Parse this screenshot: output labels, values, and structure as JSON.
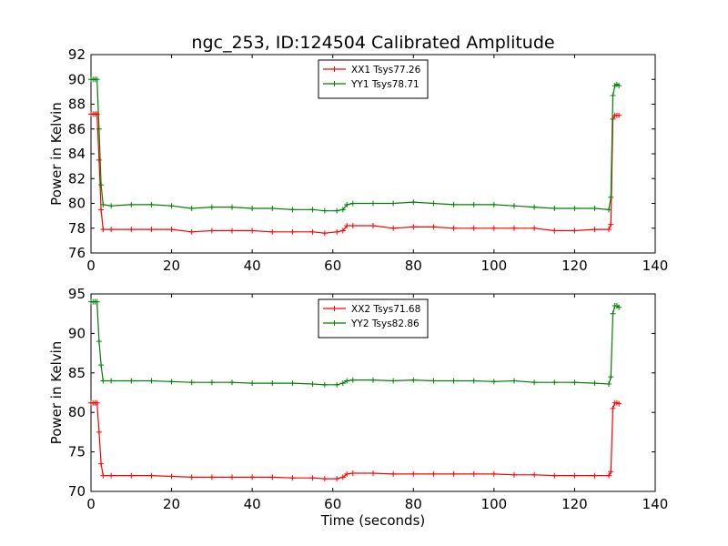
{
  "figure": {
    "title": "ngc_253, ID:124504 Calibrated Amplitude"
  },
  "chart_data": [
    {
      "type": "line",
      "title": "ngc_253, ID:124504 Calibrated Amplitude",
      "xlabel": "",
      "ylabel": "Power in Kelvin",
      "xlim": [
        0,
        140
      ],
      "ylim": [
        76,
        92
      ],
      "xticks": [
        0,
        20,
        40,
        60,
        80,
        100,
        120,
        140
      ],
      "yticks": [
        76,
        78,
        80,
        82,
        84,
        86,
        88,
        90,
        92
      ],
      "grid": false,
      "legend_position": "top-center",
      "x": [
        0,
        0.5,
        1,
        1.5,
        2,
        2.5,
        3,
        5,
        10,
        15,
        20,
        25,
        30,
        35,
        40,
        45,
        50,
        55,
        58,
        61,
        62.5,
        63.5,
        65,
        70,
        75,
        80,
        85,
        90,
        95,
        100,
        105,
        110,
        115,
        120,
        125,
        128.5,
        129,
        129.5,
        130,
        130.5,
        131
      ],
      "series": [
        {
          "name": "XX1 Tsys77.26",
          "color": "#ff0000",
          "values": [
            87.2,
            87.2,
            87.2,
            87.2,
            83.5,
            79.5,
            77.9,
            77.9,
            77.9,
            77.9,
            77.9,
            77.7,
            77.8,
            77.8,
            77.8,
            77.7,
            77.7,
            77.7,
            77.6,
            77.7,
            77.8,
            78.2,
            78.2,
            78.2,
            78.0,
            78.1,
            78.1,
            78.0,
            78.0,
            78.0,
            78.0,
            78.0,
            77.8,
            77.8,
            77.9,
            77.9,
            78.3,
            86.8,
            87.1,
            87.1,
            87.1
          ]
        },
        {
          "name": "YY1 Tsys78.71",
          "color": "#008000",
          "values": [
            90.0,
            90.0,
            90.0,
            90.0,
            86.0,
            81.5,
            79.9,
            79.8,
            79.9,
            79.9,
            79.8,
            79.6,
            79.7,
            79.7,
            79.6,
            79.6,
            79.5,
            79.5,
            79.4,
            79.4,
            79.5,
            79.9,
            80.0,
            80.0,
            80.0,
            80.1,
            80.0,
            79.9,
            79.9,
            79.9,
            79.8,
            79.7,
            79.6,
            79.6,
            79.6,
            79.5,
            80.5,
            88.7,
            89.5,
            89.6,
            89.5
          ]
        }
      ]
    },
    {
      "type": "line",
      "title": "",
      "xlabel": "Time (seconds)",
      "ylabel": "Power in Kelvin",
      "xlim": [
        0,
        140
      ],
      "ylim": [
        70,
        95
      ],
      "xticks": [
        0,
        20,
        40,
        60,
        80,
        100,
        120,
        140
      ],
      "yticks": [
        70,
        75,
        80,
        85,
        90,
        95
      ],
      "grid": false,
      "legend_position": "top-center",
      "x": [
        0,
        0.5,
        1,
        1.5,
        2,
        2.5,
        3,
        5,
        10,
        15,
        20,
        25,
        30,
        35,
        40,
        45,
        50,
        55,
        58,
        61,
        62.5,
        63.5,
        65,
        70,
        75,
        80,
        85,
        90,
        95,
        100,
        105,
        110,
        115,
        120,
        125,
        128.5,
        129,
        129.5,
        130,
        130.5,
        131
      ],
      "series": [
        {
          "name": "XX2 Tsys71.68",
          "color": "#ff0000",
          "values": [
            81.2,
            81.2,
            81.2,
            81.2,
            77.5,
            73.5,
            72.0,
            72.0,
            72.0,
            72.0,
            71.9,
            71.8,
            71.8,
            71.8,
            71.8,
            71.8,
            71.7,
            71.7,
            71.6,
            71.6,
            71.8,
            72.2,
            72.3,
            72.3,
            72.2,
            72.2,
            72.2,
            72.2,
            72.2,
            72.2,
            72.1,
            72.1,
            72.0,
            72.0,
            72.0,
            72.0,
            72.5,
            80.5,
            81.2,
            81.2,
            81.1
          ]
        },
        {
          "name": "YY2 Tsys82.86",
          "color": "#008000",
          "values": [
            94.0,
            94.0,
            94.0,
            94.0,
            89.0,
            86.0,
            84.0,
            84.0,
            84.0,
            84.0,
            83.9,
            83.8,
            83.8,
            83.8,
            83.7,
            83.7,
            83.7,
            83.6,
            83.5,
            83.5,
            83.7,
            84.0,
            84.1,
            84.1,
            84.0,
            84.1,
            84.0,
            84.0,
            84.0,
            83.9,
            84.0,
            83.8,
            83.8,
            83.8,
            83.7,
            83.6,
            84.5,
            92.5,
            93.5,
            93.5,
            93.3
          ]
        }
      ]
    }
  ]
}
